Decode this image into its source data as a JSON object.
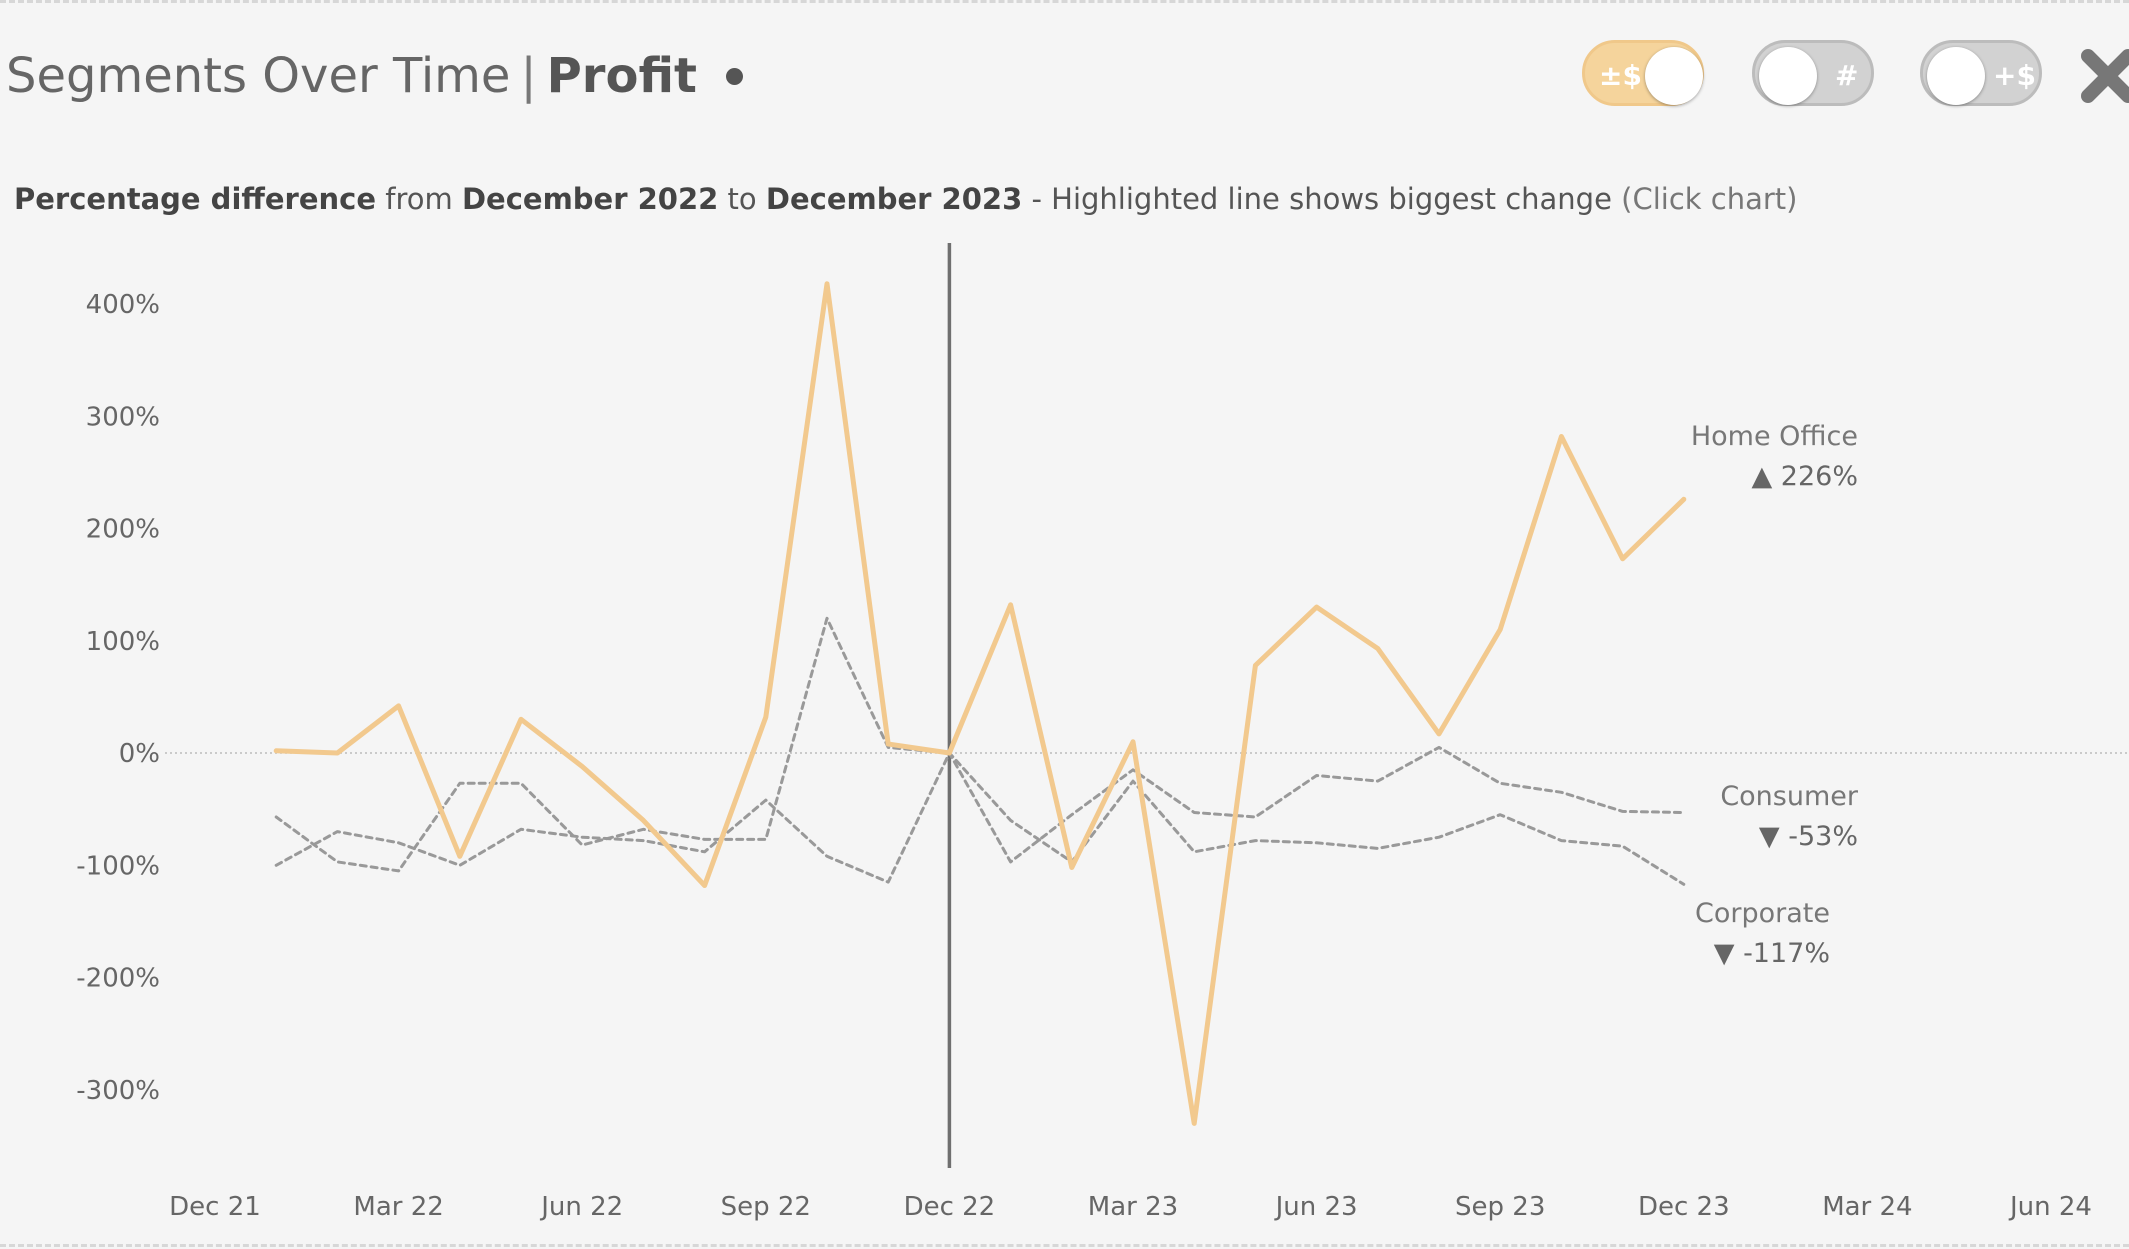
{
  "header": {
    "title": "Segments Over Time",
    "separator": "|",
    "measure": "Profit"
  },
  "toggles": [
    {
      "label": "±$",
      "state": "on",
      "color": "#f5d49c"
    },
    {
      "label": "#",
      "state": "off",
      "color": "#d2d2d2"
    },
    {
      "label": "+$",
      "state": "off",
      "color": "#d2d2d2"
    }
  ],
  "subtitle": {
    "part1": "Percentage difference",
    "part2": "from",
    "start": "December 2022",
    "part3": "to",
    "end": "December 2023",
    "part4": "- Highlighted line shows biggest change",
    "hint": "(Click chart)"
  },
  "chart_data": {
    "type": "line",
    "x_ticks": [
      "Dec 21",
      "Mar 22",
      "Jun 22",
      "Sep 22",
      "Dec 22",
      "Mar 23",
      "Jun 23",
      "Sep 23",
      "Dec 23",
      "Mar 24",
      "Jun 24"
    ],
    "y_ticks": [
      "400%",
      "300%",
      "200%",
      "100%",
      "0%",
      "-100%",
      "-200%",
      "-300%"
    ],
    "y_tick_values": [
      400,
      300,
      200,
      100,
      0,
      -100,
      -200,
      -300
    ],
    "ylim": [
      -370,
      455
    ],
    "xlim": [
      "2021-12",
      "2024-06"
    ],
    "reference_line": "Dec 22",
    "zero_line": true,
    "highlight_color": "#f2c98e",
    "other_color": "#999999",
    "series": [
      {
        "name": "Home Office",
        "highlight": true,
        "change_label": "▲ 226%",
        "points": [
          [
            "2022-01",
            2
          ],
          [
            "2022-02",
            0
          ],
          [
            "2022-03",
            42
          ],
          [
            "2022-04",
            -92
          ],
          [
            "2022-05",
            30
          ],
          [
            "2022-06",
            -12
          ],
          [
            "2022-07",
            -60
          ],
          [
            "2022-08",
            -118
          ],
          [
            "2022-09",
            32
          ],
          [
            "2022-10",
            418
          ],
          [
            "2022-11",
            8
          ],
          [
            "2022-12",
            0
          ],
          [
            "2023-01",
            132
          ],
          [
            "2023-02",
            -102
          ],
          [
            "2023-03",
            10
          ],
          [
            "2023-04",
            -330
          ],
          [
            "2023-05",
            78
          ],
          [
            "2023-06",
            130
          ],
          [
            "2023-07",
            93
          ],
          [
            "2023-08",
            17
          ],
          [
            "2023-09",
            110
          ],
          [
            "2023-10",
            282
          ],
          [
            "2023-11",
            173
          ],
          [
            "2023-12",
            226
          ]
        ]
      },
      {
        "name": "Consumer",
        "highlight": false,
        "change_label": "▼ -53%",
        "points": [
          [
            "2022-01",
            -57
          ],
          [
            "2022-02",
            -97
          ],
          [
            "2022-03",
            -105
          ],
          [
            "2022-04",
            -27
          ],
          [
            "2022-05",
            -27
          ],
          [
            "2022-06",
            -82
          ],
          [
            "2022-07",
            -68
          ],
          [
            "2022-08",
            -77
          ],
          [
            "2022-09",
            -77
          ],
          [
            "2022-10",
            120
          ],
          [
            "2022-11",
            5
          ],
          [
            "2022-12",
            0
          ],
          [
            "2023-01",
            -97
          ],
          [
            "2023-02",
            -55
          ],
          [
            "2023-03",
            -15
          ],
          [
            "2023-04",
            -53
          ],
          [
            "2023-05",
            -57
          ],
          [
            "2023-06",
            -20
          ],
          [
            "2023-07",
            -25
          ],
          [
            "2023-08",
            5
          ],
          [
            "2023-09",
            -27
          ],
          [
            "2023-10",
            -35
          ],
          [
            "2023-11",
            -52
          ],
          [
            "2023-12",
            -53
          ]
        ]
      },
      {
        "name": "Corporate",
        "highlight": false,
        "change_label": "▼ -117%",
        "points": [
          [
            "2022-01",
            -100
          ],
          [
            "2022-02",
            -70
          ],
          [
            "2022-03",
            -80
          ],
          [
            "2022-04",
            -100
          ],
          [
            "2022-05",
            -68
          ],
          [
            "2022-06",
            -75
          ],
          [
            "2022-07",
            -78
          ],
          [
            "2022-08",
            -88
          ],
          [
            "2022-09",
            -42
          ],
          [
            "2022-10",
            -92
          ],
          [
            "2022-11",
            -115
          ],
          [
            "2022-12",
            0
          ],
          [
            "2023-01",
            -60
          ],
          [
            "2023-02",
            -97
          ],
          [
            "2023-03",
            -25
          ],
          [
            "2023-04",
            -88
          ],
          [
            "2023-05",
            -78
          ],
          [
            "2023-06",
            -80
          ],
          [
            "2023-07",
            -85
          ],
          [
            "2023-08",
            -75
          ],
          [
            "2023-09",
            -55
          ],
          [
            "2023-10",
            -78
          ],
          [
            "2023-11",
            -83
          ],
          [
            "2023-12",
            -117
          ]
        ]
      }
    ]
  }
}
